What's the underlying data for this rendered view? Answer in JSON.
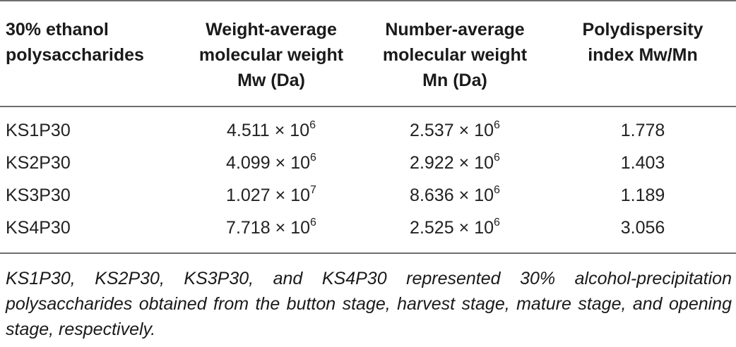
{
  "table": {
    "headers": [
      [
        "30% ethanol",
        "polysaccharides"
      ],
      [
        "Weight-average",
        "molecular weight",
        "Mw (Da)"
      ],
      [
        "Number-average",
        "molecular weight",
        "Mn (Da)"
      ],
      [
        "Polydispersity",
        "index Mw/Mn"
      ]
    ],
    "times_symbol": "×",
    "rows": [
      {
        "name": "KS1P30",
        "mw_mantissa": "4.511",
        "mw_base": "10",
        "mw_exp": "6",
        "mn_mantissa": "2.537",
        "mn_base": "10",
        "mn_exp": "6",
        "pdi": "1.778"
      },
      {
        "name": "KS2P30",
        "mw_mantissa": "4.099",
        "mw_base": "10",
        "mw_exp": "6",
        "mn_mantissa": "2.922",
        "mn_base": "10",
        "mn_exp": "6",
        "pdi": "1.403"
      },
      {
        "name": "KS3P30",
        "mw_mantissa": "1.027",
        "mw_base": "10",
        "mw_exp": "7",
        "mn_mantissa": "8.636",
        "mn_base": "10",
        "mn_exp": "6",
        "pdi": "1.189"
      },
      {
        "name": "KS4P30",
        "mw_mantissa": "7.718",
        "mw_base": "10",
        "mw_exp": "6",
        "mn_mantissa": "2.525",
        "mn_base": "10",
        "mn_exp": "6",
        "pdi": "3.056"
      }
    ]
  },
  "footnote": "KS1P30, KS2P30, KS3P30, and KS4P30 represented 30% alcohol-precipitation polysaccharides obtained from the button stage, harvest stage, mature stage, and opening stage, respectively."
}
